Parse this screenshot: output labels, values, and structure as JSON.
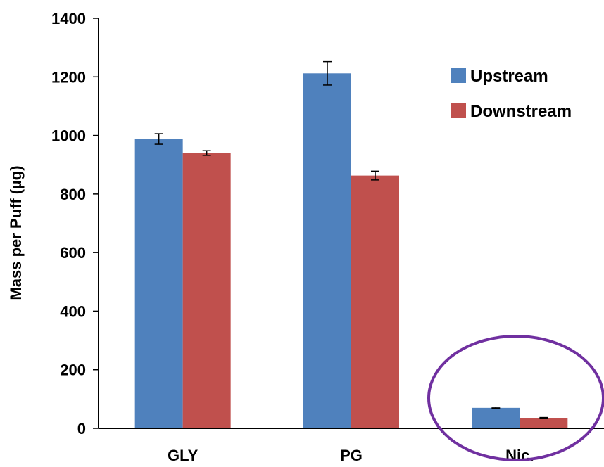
{
  "chart_data": {
    "type": "bar",
    "title": "",
    "xlabel": "",
    "ylabel": "Mass per Puff (µg)",
    "ylim": [
      0,
      1400
    ],
    "yticks": [
      0,
      200,
      400,
      600,
      800,
      1000,
      1200,
      1400
    ],
    "categories": [
      "GLY",
      "PG",
      "Nic."
    ],
    "series": [
      {
        "name": "Upstream",
        "color": "#4f81bd",
        "values": [
          988,
          1212,
          70
        ],
        "errors": [
          18,
          40,
          2
        ]
      },
      {
        "name": "Downstream",
        "color": "#c0504d",
        "values": [
          940,
          863,
          35
        ],
        "errors": [
          8,
          15,
          2
        ]
      }
    ],
    "grid": false,
    "legend_position": "top-right",
    "annotation": {
      "shape": "ellipse",
      "color": "#7030a0",
      "highlights": "Nic."
    }
  }
}
